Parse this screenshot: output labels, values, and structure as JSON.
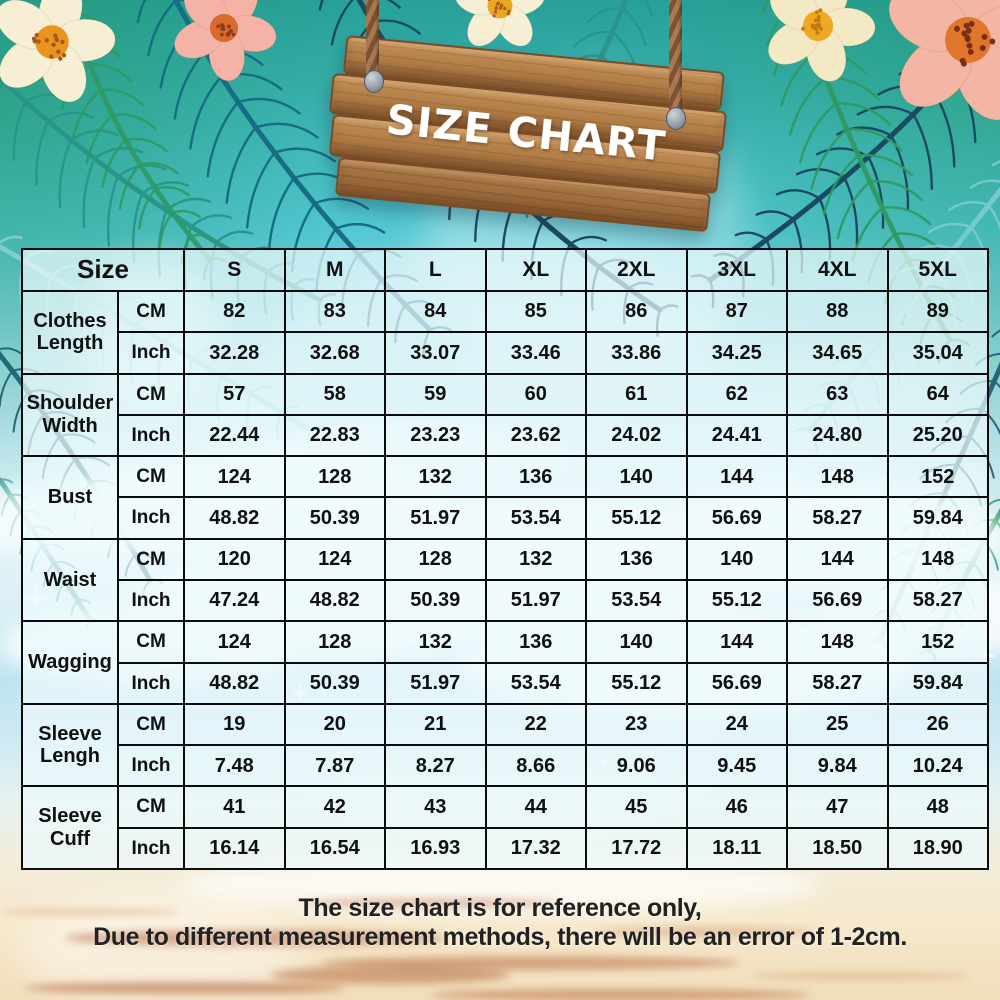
{
  "title": "SIZE CHART",
  "table": {
    "size_label": "Size",
    "sizes": [
      "S",
      "M",
      "L",
      "XL",
      "2XL",
      "3XL",
      "4XL",
      "5XL"
    ],
    "unit_cm": "CM",
    "unit_inch": "Inch",
    "rows": [
      {
        "label": "Clothes Length",
        "cm": [
          "82",
          "83",
          "84",
          "85",
          "86",
          "87",
          "88",
          "89"
        ],
        "inch": [
          "32.28",
          "32.68",
          "33.07",
          "33.46",
          "33.86",
          "34.25",
          "34.65",
          "35.04"
        ]
      },
      {
        "label": "Shoulder Width",
        "cm": [
          "57",
          "58",
          "59",
          "60",
          "61",
          "62",
          "63",
          "64"
        ],
        "inch": [
          "22.44",
          "22.83",
          "23.23",
          "23.62",
          "24.02",
          "24.41",
          "24.80",
          "25.20"
        ]
      },
      {
        "label": "Bust",
        "cm": [
          "124",
          "128",
          "132",
          "136",
          "140",
          "144",
          "148",
          "152"
        ],
        "inch": [
          "48.82",
          "50.39",
          "51.97",
          "53.54",
          "55.12",
          "56.69",
          "58.27",
          "59.84"
        ]
      },
      {
        "label": "Waist",
        "cm": [
          "120",
          "124",
          "128",
          "132",
          "136",
          "140",
          "144",
          "148"
        ],
        "inch": [
          "47.24",
          "48.82",
          "50.39",
          "51.97",
          "53.54",
          "55.12",
          "56.69",
          "58.27"
        ]
      },
      {
        "label": "Wagging",
        "cm": [
          "124",
          "128",
          "132",
          "136",
          "140",
          "144",
          "148",
          "152"
        ],
        "inch": [
          "48.82",
          "50.39",
          "51.97",
          "53.54",
          "55.12",
          "56.69",
          "58.27",
          "59.84"
        ]
      },
      {
        "label": "Sleeve Lengh",
        "cm": [
          "19",
          "20",
          "21",
          "22",
          "23",
          "24",
          "25",
          "26"
        ],
        "inch": [
          "7.48",
          "7.87",
          "8.27",
          "8.66",
          "9.06",
          "9.45",
          "9.84",
          "10.24"
        ]
      },
      {
        "label": "Sleeve Cuff",
        "cm": [
          "41",
          "42",
          "43",
          "44",
          "45",
          "46",
          "47",
          "48"
        ],
        "inch": [
          "16.14",
          "16.54",
          "16.93",
          "17.32",
          "17.72",
          "18.11",
          "18.50",
          "18.90"
        ]
      }
    ]
  },
  "footer": {
    "line1": "The size chart is for reference only,",
    "line2": "Due to different measurement methods, there will be an error of 1-2cm."
  },
  "colors": {
    "teal_top": "#27a099",
    "sky_blue": "#cdecf3",
    "sand": "#f4e7cb",
    "wood": "#b07c46",
    "wood_border": "#7a4c26",
    "table_border": "#0c0c0c",
    "cell_bg": "rgba(236,250,252,0.72)",
    "title_text": "#ffffff",
    "body_text": "#101010"
  }
}
